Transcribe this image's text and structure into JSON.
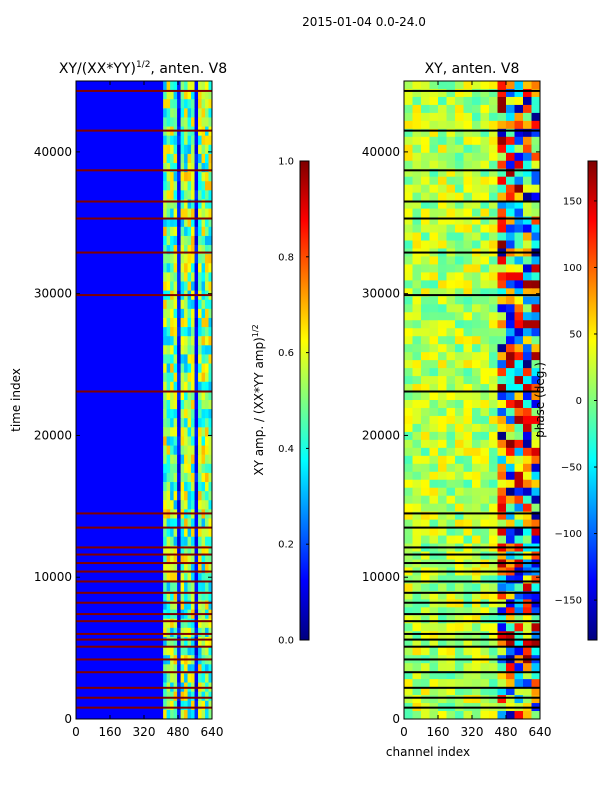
{
  "page_title": "2015-01-04 0.0-24.0",
  "colors": {
    "jet": [
      "#00007f",
      "#0000ff",
      "#007fff",
      "#00ffff",
      "#7fff7f",
      "#ffff00",
      "#ff7f00",
      "#ff0000",
      "#7f0000"
    ],
    "axis": "#000000",
    "flag_row": "#7f0000",
    "flag_row_phase": "#000000"
  },
  "chart_data": [
    {
      "id": "amp",
      "type": "heatmap",
      "title": "XY/(XX*YY)",
      "title_exponent": "1/2",
      "title_suffix": ", anten. V8",
      "xlabel": "",
      "ylabel": "time index",
      "xlim": [
        0,
        640
      ],
      "ylim": [
        0,
        45000
      ],
      "xticks": [
        "0",
        "160",
        "320",
        "480",
        "640"
      ],
      "yticks": [
        "0",
        "10000",
        "20000",
        "30000",
        "40000"
      ],
      "xtick_values": [
        0,
        160,
        320,
        480,
        640
      ],
      "ytick_values": [
        0,
        10000,
        20000,
        30000,
        40000
      ],
      "active_channels": [
        410,
        640
      ],
      "flagged_rows": [
        800,
        1500,
        2200,
        3300,
        4200,
        5100,
        5600,
        6000,
        6900,
        7400,
        8200,
        8900,
        9700,
        10400,
        11000,
        11600,
        12100,
        13500,
        14500,
        23100,
        29900,
        32900,
        35300,
        36500,
        38700,
        41500,
        44300
      ],
      "colorbar": {
        "label": "XY amp. / (XX*YY amp)",
        "label_exponent": "1/2",
        "range": [
          0.0,
          1.0
        ],
        "ticks": [
          "0.0",
          "0.2",
          "0.4",
          "0.6",
          "0.8",
          "1.0"
        ],
        "tick_values": [
          0.0,
          0.2,
          0.4,
          0.6,
          0.8,
          1.0
        ]
      }
    },
    {
      "id": "phase",
      "type": "heatmap",
      "title": "XY, anten. V8",
      "xlabel": "channel index",
      "ylabel": "",
      "xlim": [
        0,
        640
      ],
      "ylim": [
        0,
        45000
      ],
      "xticks": [
        "0",
        "160",
        "320",
        "480",
        "640"
      ],
      "yticks": [
        "0",
        "10000",
        "20000",
        "30000",
        "40000"
      ],
      "xtick_values": [
        0,
        160,
        320,
        480,
        640
      ],
      "ytick_values": [
        0,
        10000,
        20000,
        30000,
        40000
      ],
      "flagged_rows": [
        800,
        1500,
        2200,
        3300,
        4200,
        5100,
        5600,
        6000,
        6900,
        7400,
        8200,
        8900,
        9700,
        10400,
        11000,
        11600,
        12100,
        13500,
        14500,
        23100,
        29900,
        32900,
        35300,
        36500,
        38700,
        41500,
        44300
      ],
      "colorbar": {
        "label": "phase (deg.)",
        "range": [
          -180,
          180
        ],
        "ticks": [
          "−150",
          "−100",
          "−50",
          "0",
          "50",
          "100",
          "150"
        ],
        "tick_values": [
          -150,
          -100,
          -50,
          0,
          50,
          100,
          150
        ]
      }
    }
  ]
}
